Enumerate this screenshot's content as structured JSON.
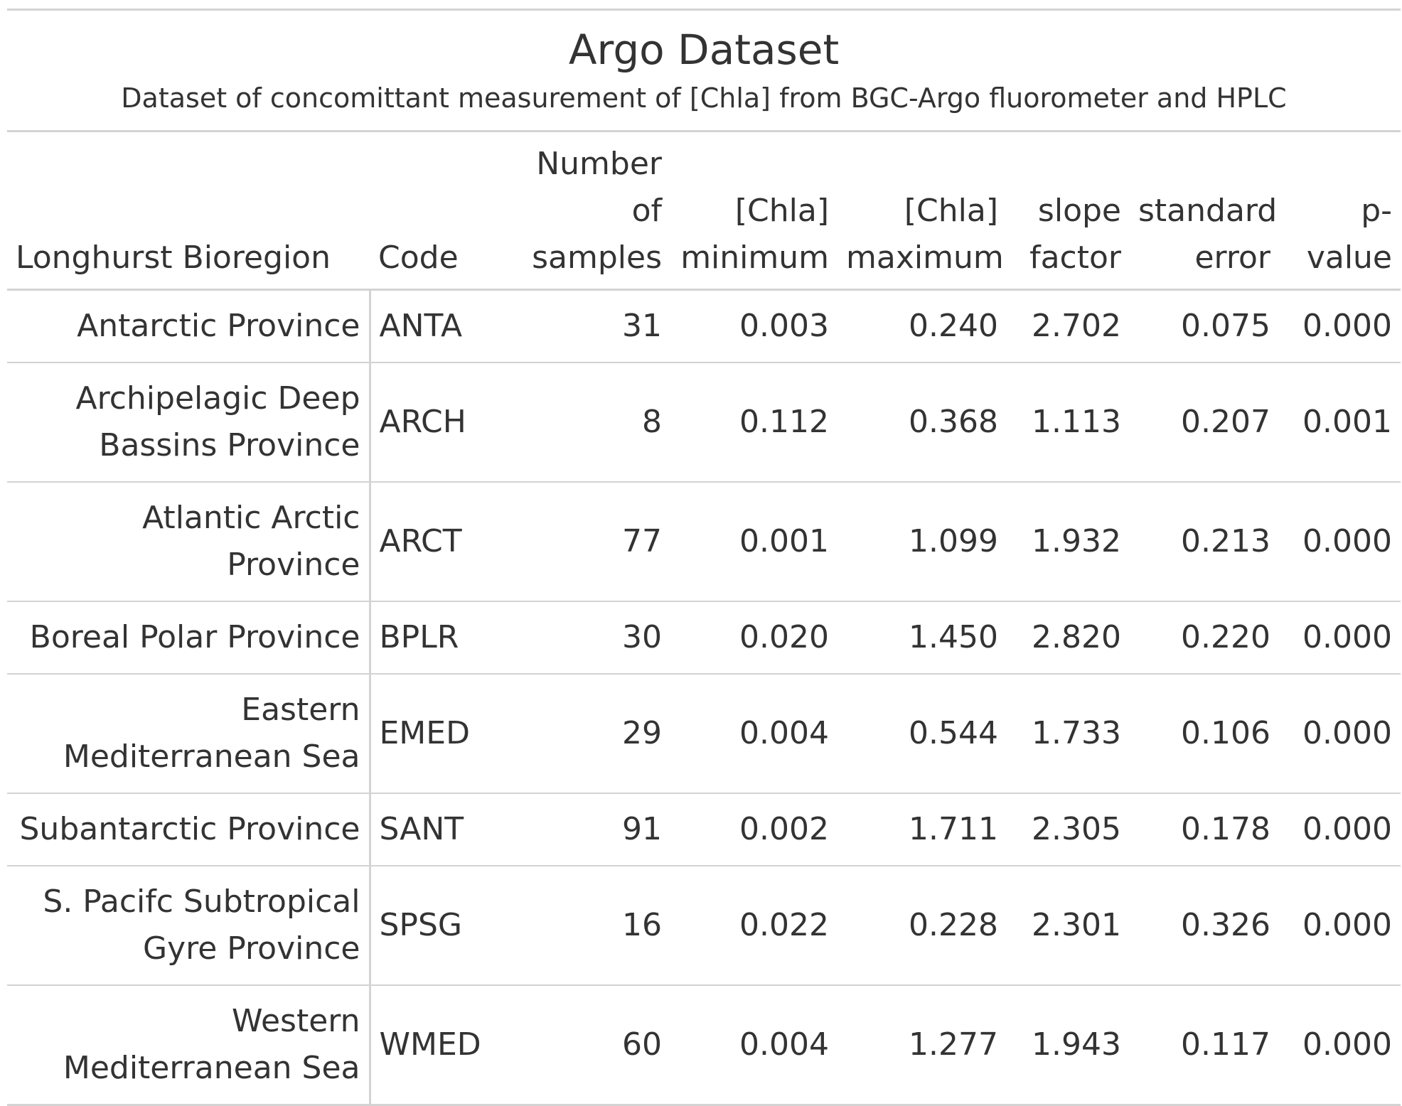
{
  "title": "Argo Dataset",
  "subtitle": "Dataset of concomittant measurement of [Chla] from BGC-Argo fluorometer and HPLC",
  "columns": [
    {
      "label": "Longhurst Bioregion"
    },
    {
      "label": "Code"
    },
    {
      "label": "Number of samples"
    },
    {
      "label": "[Chla] minimum"
    },
    {
      "label": "[Chla] maximum"
    },
    {
      "label": "slope factor"
    },
    {
      "label": "standard error"
    },
    {
      "label": "p-value"
    }
  ],
  "rows": [
    {
      "region": "Antarctic Province",
      "code": "ANTA",
      "n": "31",
      "min": "0.003",
      "max": "0.240",
      "slope": "2.702",
      "se": "0.075",
      "p": "0.000"
    },
    {
      "region": "Archipelagic Deep Bassins Province",
      "code": "ARCH",
      "n": "8",
      "min": "0.112",
      "max": "0.368",
      "slope": "1.113",
      "se": "0.207",
      "p": "0.001"
    },
    {
      "region": "Atlantic Arctic Province",
      "code": "ARCT",
      "n": "77",
      "min": "0.001",
      "max": "1.099",
      "slope": "1.932",
      "se": "0.213",
      "p": "0.000"
    },
    {
      "region": "Boreal Polar Province",
      "code": "BPLR",
      "n": "30",
      "min": "0.020",
      "max": "1.450",
      "slope": "2.820",
      "se": "0.220",
      "p": "0.000"
    },
    {
      "region": "Eastern Mediterranean Sea",
      "code": "EMED",
      "n": "29",
      "min": "0.004",
      "max": "0.544",
      "slope": "1.733",
      "se": "0.106",
      "p": "0.000"
    },
    {
      "region": "Subantarctic Province",
      "code": "SANT",
      "n": "91",
      "min": "0.002",
      "max": "1.711",
      "slope": "2.305",
      "se": "0.178",
      "p": "0.000"
    },
    {
      "region": "S. Pacifc Subtropical Gyre Province",
      "code": "SPSG",
      "n": "16",
      "min": "0.022",
      "max": "0.228",
      "slope": "2.301",
      "se": "0.326",
      "p": "0.000"
    },
    {
      "region": "Western Mediterranean Sea",
      "code": "WMED",
      "n": "60",
      "min": "0.004",
      "max": "1.277",
      "slope": "1.943",
      "se": "0.117",
      "p": "0.000"
    }
  ]
}
